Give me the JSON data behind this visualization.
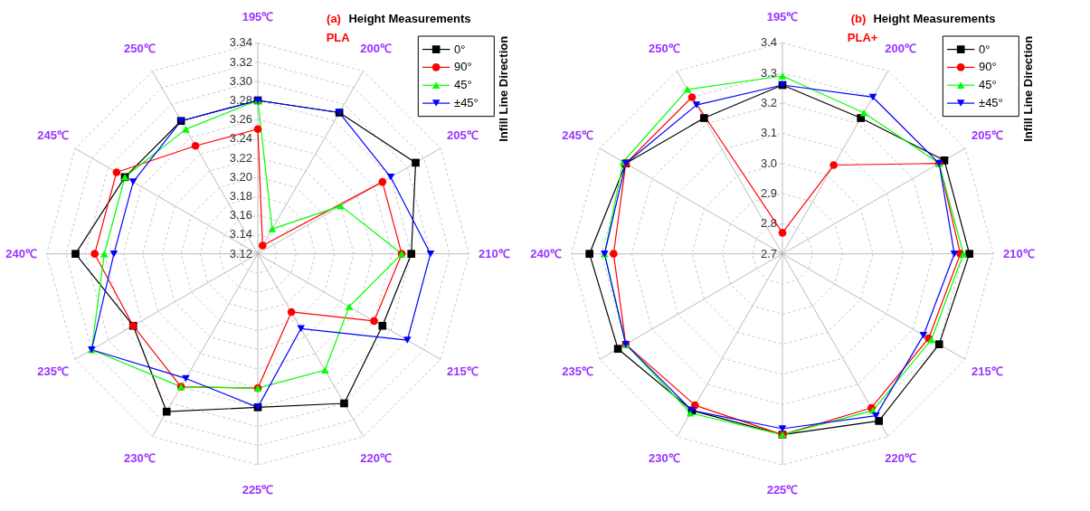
{
  "chart_data": [
    {
      "type": "radar",
      "title": "Height Measurements",
      "subtitle": "PLA",
      "annotations": [
        "(a)"
      ],
      "legend_title": "Infill Line Direction",
      "legend": "top right",
      "grid": true,
      "categories": [
        "195℃",
        "200℃",
        "205℃",
        "210℃",
        "215℃",
        "220℃",
        "225℃",
        "230℃",
        "235℃",
        "240℃",
        "245℃",
        "250℃"
      ],
      "ylim": [
        3.12,
        3.34
      ],
      "yticks": [
        {
          "value": 3.12,
          "label": "3.12"
        },
        {
          "value": 3.14,
          "label": "3.14"
        },
        {
          "value": 3.16,
          "label": "3.16"
        },
        {
          "value": 3.18,
          "label": "3.18"
        },
        {
          "value": 3.2,
          "label": "3.20"
        },
        {
          "value": 3.22,
          "label": "3.22"
        },
        {
          "value": 3.24,
          "label": "3.24"
        },
        {
          "value": 3.26,
          "label": "3.26"
        },
        {
          "value": 3.28,
          "label": "3.28"
        },
        {
          "value": 3.3,
          "label": "3.30"
        },
        {
          "value": 3.32,
          "label": "3.32"
        },
        {
          "value": 3.34,
          "label": "3.34"
        }
      ],
      "series": [
        {
          "name": "0°",
          "color": "#000000",
          "marker": "square",
          "values": [
            3.28,
            3.29,
            3.31,
            3.28,
            3.27,
            3.3,
            3.28,
            3.31,
            3.27,
            3.31,
            3.28,
            3.28
          ]
        },
        {
          "name": "90°",
          "color": "#ff0000",
          "marker": "circle",
          "values": [
            3.25,
            3.13,
            3.27,
            3.27,
            3.26,
            3.19,
            3.26,
            3.28,
            3.27,
            3.29,
            3.29,
            3.25
          ]
        },
        {
          "name": "45°",
          "color": "#00ff00",
          "marker": "triangle",
          "values": [
            3.28,
            3.15,
            3.22,
            3.27,
            3.23,
            3.26,
            3.26,
            3.28,
            3.32,
            3.28,
            3.28,
            3.27
          ]
        },
        {
          "name": "±45°",
          "color": "#0000ff",
          "marker": "triangle-down",
          "values": [
            3.28,
            3.29,
            3.28,
            3.3,
            3.3,
            3.21,
            3.28,
            3.27,
            3.32,
            3.27,
            3.27,
            3.28
          ]
        }
      ]
    },
    {
      "type": "radar",
      "title": "Height Measurements",
      "subtitle": "PLA+",
      "annotations": [
        "(b)"
      ],
      "legend_title": "Infill Line Direction",
      "legend": "top right",
      "grid": true,
      "categories": [
        "195℃",
        "200℃",
        "205℃",
        "210℃",
        "215℃",
        "220℃",
        "225℃",
        "230℃",
        "235℃",
        "240℃",
        "245℃",
        "250℃"
      ],
      "ylim": [
        2.7,
        3.4
      ],
      "yticks": [
        {
          "value": 2.7,
          "label": "2.7"
        },
        {
          "value": 2.8,
          "label": "2.8"
        },
        {
          "value": 2.9,
          "label": "2.9"
        },
        {
          "value": 3.0,
          "label": "3.0"
        },
        {
          "value": 3.1,
          "label": "3.1"
        },
        {
          "value": 3.2,
          "label": "3.2"
        },
        {
          "value": 3.3,
          "label": "3.3"
        },
        {
          "value": 3.4,
          "label": "3.4"
        }
      ],
      "series": [
        {
          "name": "0°",
          "color": "#000000",
          "marker": "square",
          "values": [
            3.26,
            3.22,
            3.32,
            3.32,
            3.3,
            3.34,
            3.3,
            3.3,
            3.33,
            3.34,
            3.3,
            3.22
          ]
        },
        {
          "name": "90°",
          "color": "#ff0000",
          "marker": "circle",
          "values": [
            2.77,
            3.04,
            3.3,
            3.29,
            3.26,
            3.29,
            3.3,
            3.28,
            3.3,
            3.26,
            3.3,
            3.3
          ]
        },
        {
          "name": "45°",
          "color": "#00ff00",
          "marker": "triangle",
          "values": [
            3.29,
            3.24,
            3.3,
            3.3,
            3.27,
            3.3,
            3.3,
            3.31,
            3.3,
            3.29,
            3.31,
            3.33
          ]
        },
        {
          "name": "±45°",
          "color": "#0000ff",
          "marker": "triangle-down",
          "values": [
            3.26,
            3.3,
            3.3,
            3.27,
            3.24,
            3.32,
            3.28,
            3.3,
            3.3,
            3.29,
            3.3,
            3.27
          ]
        }
      ]
    }
  ]
}
